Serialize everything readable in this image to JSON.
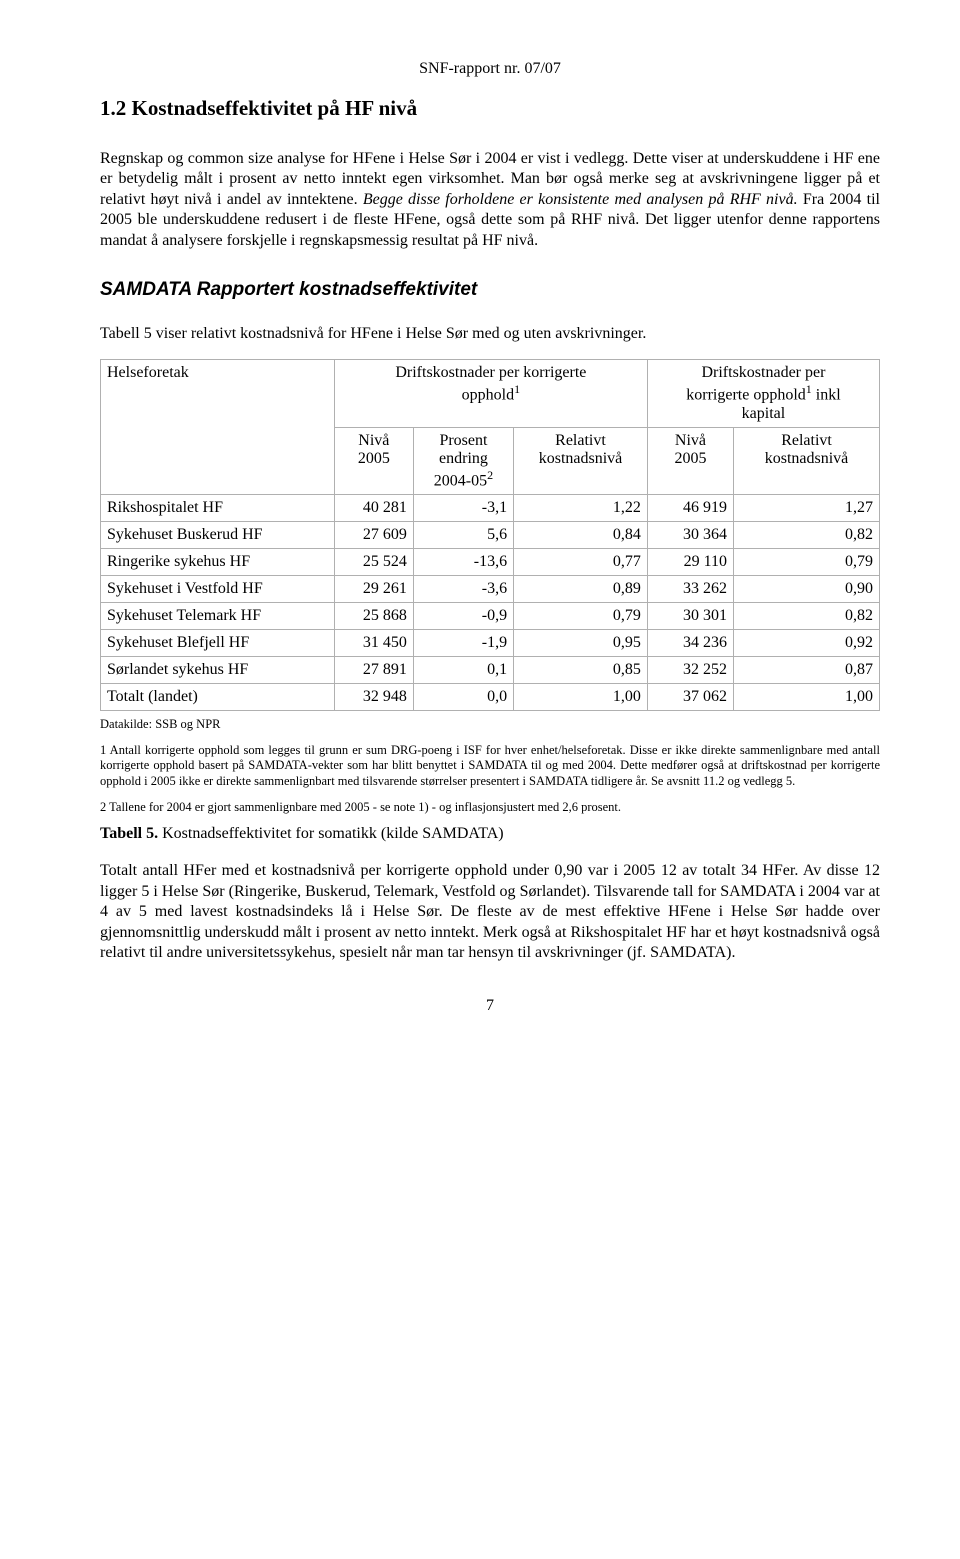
{
  "header": "SNF-rapport nr. 07/07",
  "section_number": "1.2 Kostnadseffektivitet på HF nivå",
  "para1": "Regnskap og common size analyse for HFene i Helse Sør i 2004 er vist i vedlegg. Dette viser at underskuddene i HF ene er betydelig målt i prosent av netto inntekt egen virksomhet. Man bør også merke seg at avskrivningene ligger på et relativt høyt nivå i andel av inntektene. Begge disse forholdene er konsistente med analysen på RHF nivå. Fra 2004 til 2005 ble underskuddene redusert i de fleste HFene, også dette som på RHF nivå. Det ligger utenfor denne rapportens mandat å analysere forskjelle i regnskapsmessig resultat på HF nivå.",
  "sub_title": "SAMDATA Rapportert  kostnadseffektivitet",
  "table_intro": "Tabell 5 viser relativt kostnadsnivå for HFene i Helse Sør med og uten avskrivninger.",
  "table": {
    "border_color": "#b0b0b0",
    "col_helseforetak": "Helseforetak",
    "group1_label_a": "Driftskostnader per korrigerte",
    "group1_label_b": "opphold",
    "group2_label_a": "Driftskostnader per",
    "group2_label_b": "korrigerte opphold",
    "group2_label_c": "inkl",
    "group2_label_d": "kapital",
    "sub_nivaa": "Nivå",
    "sub_2005": "2005",
    "sub_prosent": "Prosent",
    "sub_endring": "endring",
    "sub_2004_05": "2004-05",
    "sub_relativt": "Relativt",
    "sub_kostnadsniva": "kostnadsnivå",
    "rows": [
      {
        "label": "Rikshospitalet HF",
        "c1": "40 281",
        "c2": "-3,1",
        "c3": "1,22",
        "c4": "46 919",
        "c5": "1,27"
      },
      {
        "label": "Sykehuset Buskerud HF",
        "c1": "27 609",
        "c2": "5,6",
        "c3": "0,84",
        "c4": "30 364",
        "c5": "0,82"
      },
      {
        "label": "Ringerike sykehus HF",
        "c1": "25 524",
        "c2": "-13,6",
        "c3": "0,77",
        "c4": "29 110",
        "c5": "0,79"
      },
      {
        "label": "Sykehuset i Vestfold HF",
        "c1": "29 261",
        "c2": "-3,6",
        "c3": "0,89",
        "c4": "33 262",
        "c5": "0,90"
      },
      {
        "label": "Sykehuset Telemark HF",
        "c1": "25 868",
        "c2": "-0,9",
        "c3": "0,79",
        "c4": "30 301",
        "c5": "0,82"
      },
      {
        "label": "Sykehuset Blefjell HF",
        "c1": "31 450",
        "c2": "-1,9",
        "c3": "0,95",
        "c4": "34 236",
        "c5": "0,92"
      },
      {
        "label": "Sørlandet sykehus HF",
        "c1": "27 891",
        "c2": "0,1",
        "c3": "0,85",
        "c4": "32 252",
        "c5": "0,87"
      },
      {
        "label": "Totalt (landet)",
        "c1": "32 948",
        "c2": "0,0",
        "c3": "1,00",
        "c4": "37 062",
        "c5": "1,00"
      }
    ],
    "source": "Datakilde: SSB og NPR"
  },
  "footnote1": "1 Antall korrigerte opphold som legges til grunn er sum DRG-poeng i ISF for hver enhet/helseforetak. Disse er ikke direkte sammenlignbare med antall korrigerte opphold basert på SAMDATA-vekter som har blitt benyttet i SAMDATA til og med 2004. Dette medfører også at driftskostnad per korrigerte opphold i 2005 ikke er direkte sammenlignbart med tilsvarende størrelser presentert i SAMDATA tidligere år.  Se avsnitt 11.2 og vedlegg 5.",
  "footnote2": "2 Tallene for 2004 er gjort sammenlignbare med 2005 - se note 1) - og inflasjonsjustert med 2,6 prosent.",
  "caption_bold": "Tabell 5.",
  "caption_rest": " Kostnadseffektivitet for somatikk (kilde SAMDATA)",
  "para2": "Totalt antall HFer med et kostnadsnivå per korrigerte opphold under 0,90 var i 2005 12 av totalt 34 HFer. Av disse 12 ligger 5 i Helse Sør (Ringerike, Buskerud, Telemark, Vestfold og Sørlandet). Tilsvarende tall for SAMDATA i 2004 var at 4 av 5 med lavest kostnadsindeks lå i Helse Sør. De fleste av de mest effektive HFene i Helse Sør hadde over gjennomsnittlig underskudd målt i prosent av netto inntekt. Merk også at Rikshospitalet HF har et høyt kostnadsnivå også relativt til andre universitetssykehus, spesielt når man tar hensyn til avskrivninger (jf. SAMDATA).",
  "page_number": "7"
}
